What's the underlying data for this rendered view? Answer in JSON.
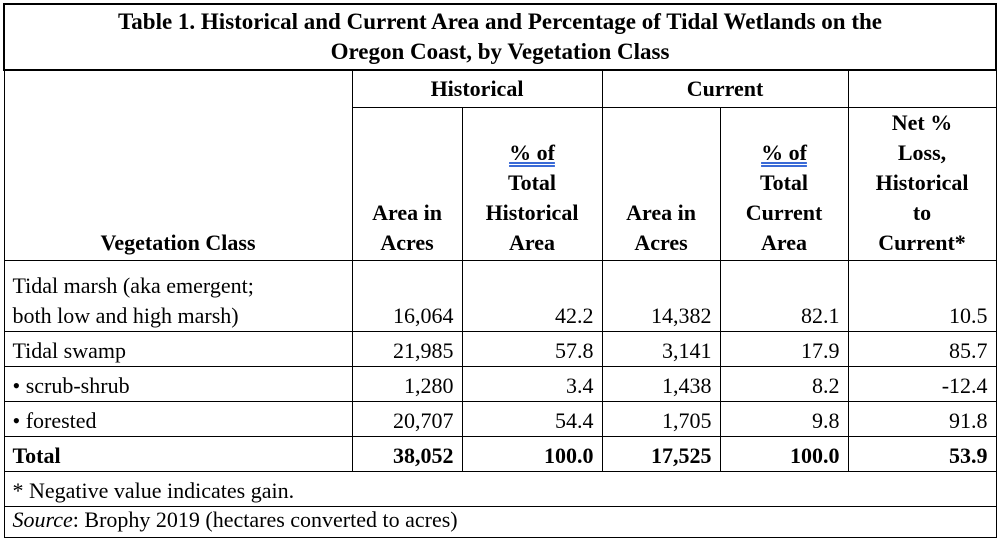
{
  "table": {
    "title_line1": "Table 1. Historical and Current Area and Percentage of Tidal Wetlands on the",
    "title_line2": "Oregon Coast, by Vegetation Class",
    "group_headers": {
      "historical": "Historical",
      "current": "Current"
    },
    "column_headers": {
      "vegetation_class": "Vegetation Class",
      "hist_area_l1": "Area in",
      "hist_area_l2": "Acres",
      "hist_pct_l1": "% of",
      "hist_pct_l2": "Total",
      "hist_pct_l3": "Historical",
      "hist_pct_l4": "Area",
      "cur_area_l1": "Area in",
      "cur_area_l2": "Acres",
      "cur_pct_l1": "% of",
      "cur_pct_l2": "Total",
      "cur_pct_l3": "Current",
      "cur_pct_l4": "Area",
      "net_l1": "Net %",
      "net_l2": "Loss,",
      "net_l3": "Historical",
      "net_l4": "to",
      "net_l5": "Current*"
    },
    "rows": [
      {
        "label_l1": "Tidal marsh (aka emergent;",
        "label_l2": "both low and high marsh)",
        "hist_area": "16,064",
        "hist_pct": "42.2",
        "cur_area": "14,382",
        "cur_pct": "82.1",
        "net_loss": "10.5"
      },
      {
        "label": "Tidal swamp",
        "hist_area": "21,985",
        "hist_pct": "57.8",
        "cur_area": "3,141",
        "cur_pct": "17.9",
        "net_loss": "85.7"
      },
      {
        "label": "• scrub-shrub",
        "hist_area": "1,280",
        "hist_pct": "3.4",
        "cur_area": "1,438",
        "cur_pct": "8.2",
        "net_loss": "-12.4"
      },
      {
        "label": "• forested",
        "hist_area": "20,707",
        "hist_pct": "54.4",
        "cur_area": "1,705",
        "cur_pct": "9.8",
        "net_loss": "91.8"
      }
    ],
    "total": {
      "label": "Total",
      "hist_area": "38,052",
      "hist_pct": "100.0",
      "cur_area": "17,525",
      "cur_pct": "100.0",
      "net_loss": "53.9"
    },
    "footnote": "* Negative value indicates gain.",
    "source_label": "Source",
    "source_text": ": Brophy 2019 (hectares converted to acres)"
  }
}
